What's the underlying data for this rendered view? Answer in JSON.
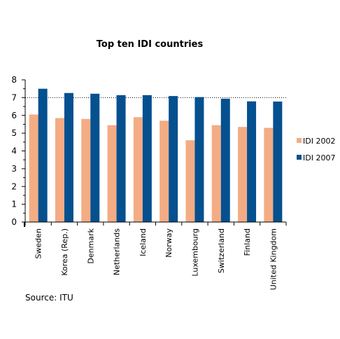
{
  "chart_data": {
    "type": "bar",
    "title": "Top ten IDI countries",
    "categories": [
      "Sweden",
      "Korea (Rep.)",
      "Denmark",
      "Netherlands",
      "Iceland",
      "Norway",
      "Luxembourg",
      "Switzerland",
      "Finland",
      "United Kingdom"
    ],
    "series": [
      {
        "name": "IDI 2002",
        "color": "#f4ac84",
        "values": [
          6.05,
          5.85,
          5.8,
          5.45,
          5.9,
          5.7,
          4.6,
          5.45,
          5.35,
          5.3
        ]
      },
      {
        "name": "IDI 2007",
        "color": "#05508f",
        "values": [
          7.5,
          7.26,
          7.22,
          7.14,
          7.14,
          7.09,
          7.03,
          6.94,
          6.79,
          6.78
        ]
      }
    ],
    "ylim": [
      0,
      8
    ],
    "yticks": [
      0,
      1,
      2,
      3,
      4,
      5,
      6,
      7,
      8
    ],
    "reference_line": 7,
    "legend_position": "right",
    "grid": false,
    "source": "Source: ITU"
  }
}
